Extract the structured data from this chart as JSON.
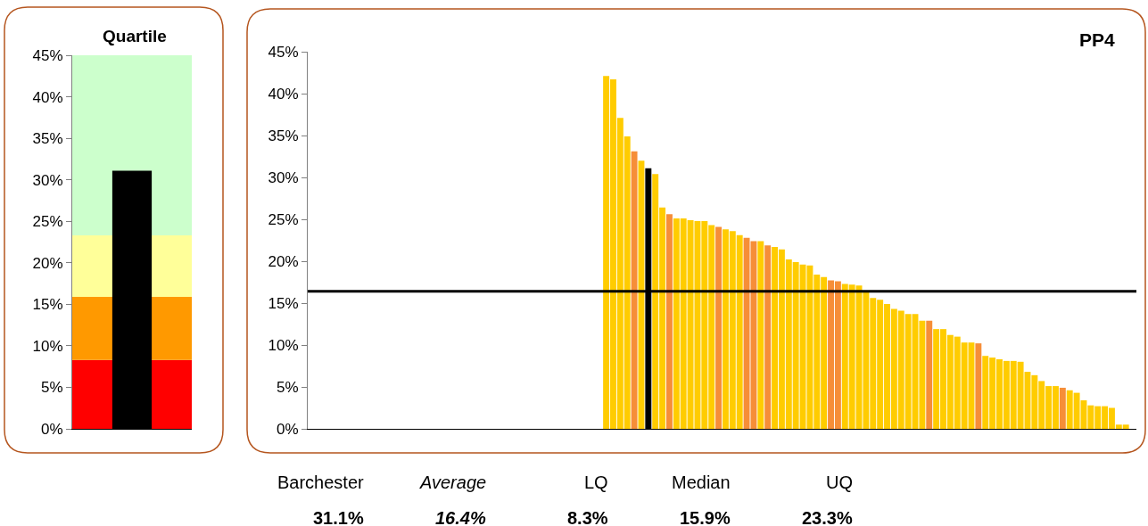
{
  "chart_data": [
    {
      "type": "bar",
      "title": "Quartile",
      "categories": [
        null
      ],
      "values": [
        31.1
      ],
      "color": "#000000",
      "tick_labels": "y",
      "ylim": [
        0,
        45
      ],
      "yticks": [
        {
          "value": 0,
          "label": "0%"
        },
        {
          "value": 5,
          "label": "5%"
        },
        {
          "value": 10,
          "label": "10%"
        },
        {
          "value": 15,
          "label": "15%"
        },
        {
          "value": 20,
          "label": "20%"
        },
        {
          "value": 25,
          "label": "25%"
        },
        {
          "value": 30,
          "label": "30%"
        },
        {
          "value": 35,
          "label": "35%"
        },
        {
          "value": 40,
          "label": "40%"
        },
        {
          "value": 45,
          "label": "45%"
        }
      ],
      "bands": [
        {
          "axis": "y",
          "from": 0,
          "to": 8.3,
          "color": "#ff0000"
        },
        {
          "axis": "y",
          "from": 8.3,
          "to": 15.9,
          "color": "#ff9900"
        },
        {
          "axis": "y",
          "from": 15.9,
          "to": 23.3,
          "color": "#ffff99"
        },
        {
          "axis": "y",
          "from": 23.3,
          "to": 45,
          "color": "#ccffcc"
        }
      ]
    },
    {
      "type": "bar",
      "title": "PP4",
      "tick_labels": "y",
      "categories": [
        null,
        null,
        null,
        null,
        null,
        null,
        null,
        null,
        null,
        null,
        null,
        null,
        null,
        null,
        null,
        null,
        null,
        null,
        null,
        null,
        null,
        null,
        null,
        null,
        null,
        null,
        null,
        null,
        null,
        null,
        null,
        null,
        null,
        null,
        null,
        null,
        null,
        null,
        null,
        null,
        null,
        null,
        null,
        null,
        null,
        null,
        null,
        null,
        null,
        null,
        null,
        null,
        null,
        null,
        null,
        null,
        null,
        null,
        null,
        null,
        null,
        null,
        null,
        null,
        null,
        null,
        null,
        null,
        null,
        null,
        null,
        null,
        null,
        null,
        null,
        null,
        null,
        null,
        null,
        null,
        null,
        null,
        null,
        null,
        null,
        null,
        null,
        null,
        null,
        null,
        null,
        null,
        null,
        null,
        null,
        null,
        null,
        null,
        null,
        null,
        null,
        null,
        null,
        null,
        null,
        null,
        null,
        null,
        null,
        null,
        null,
        null,
        null,
        null,
        null,
        null,
        null,
        null
      ],
      "values": [
        null,
        null,
        null,
        null,
        null,
        null,
        null,
        null,
        null,
        null,
        null,
        null,
        null,
        null,
        null,
        null,
        null,
        null,
        null,
        null,
        null,
        null,
        null,
        null,
        null,
        null,
        null,
        null,
        null,
        null,
        null,
        null,
        null,
        null,
        null,
        null,
        null,
        null,
        null,
        null,
        null,
        null,
        42.1,
        41.7,
        37.1,
        34.9,
        33.1,
        32.0,
        31.1,
        30.4,
        26.4,
        25.6,
        25.1,
        25.1,
        24.9,
        24.8,
        24.8,
        24.3,
        24.1,
        23.8,
        23.6,
        23.1,
        22.8,
        22.4,
        22.4,
        21.9,
        21.7,
        21.4,
        20.2,
        19.9,
        19.6,
        19.5,
        18.4,
        18.1,
        17.7,
        17.6,
        17.3,
        17.2,
        17.1,
        16.3,
        15.6,
        15.4,
        14.9,
        14.3,
        14.1,
        13.7,
        13.7,
        12.9,
        12.9,
        11.9,
        11.9,
        11.2,
        11.0,
        10.3,
        10.3,
        10.2,
        8.7,
        8.5,
        8.3,
        8.1,
        8.1,
        8.0,
        6.8,
        6.4,
        5.7,
        5.1,
        5.1,
        4.9,
        4.6,
        4.3,
        3.4,
        2.8,
        2.7,
        2.7,
        2.5,
        0.5,
        0.5,
        null
      ],
      "colors": [
        null,
        null,
        null,
        null,
        null,
        null,
        null,
        null,
        null,
        null,
        null,
        null,
        null,
        null,
        null,
        null,
        null,
        null,
        null,
        null,
        null,
        null,
        null,
        null,
        null,
        null,
        null,
        null,
        null,
        null,
        null,
        null,
        null,
        null,
        null,
        null,
        null,
        null,
        null,
        null,
        null,
        null,
        "#ffcc00",
        "#ffcc00",
        "#ffcc00",
        "#ffcc00",
        "#f68e38",
        "#ffcc00",
        "#000000",
        "#ffcc00",
        "#ffcc00",
        "#f68e38",
        "#ffcc00",
        "#ffcc00",
        "#ffcc00",
        "#ffcc00",
        "#ffcc00",
        "#ffcc00",
        "#f68e38",
        "#ffcc00",
        "#ffcc00",
        "#ffcc00",
        "#f68e38",
        "#f68e38",
        "#ffcc00",
        "#f68e38",
        "#ffcc00",
        "#ffcc00",
        "#ffcc00",
        "#ffcc00",
        "#ffcc00",
        "#ffcc00",
        "#ffcc00",
        "#ffcc00",
        "#f68e38",
        "#f68e38",
        "#ffcc00",
        "#ffcc00",
        "#ffcc00",
        "#ffcc00",
        "#ffcc00",
        "#ffcc00",
        "#ffcc00",
        "#ffcc00",
        "#ffcc00",
        "#ffcc00",
        "#ffcc00",
        "#ffcc00",
        "#f68e38",
        "#ffcc00",
        "#ffcc00",
        "#ffcc00",
        "#ffcc00",
        "#ffcc00",
        "#ffcc00",
        "#f68e38",
        "#ffcc00",
        "#ffcc00",
        "#ffcc00",
        "#ffcc00",
        "#ffcc00",
        "#ffcc00",
        "#ffcc00",
        "#ffcc00",
        "#ffcc00",
        "#ffcc00",
        "#ffcc00",
        "#f68e38",
        "#ffcc00",
        "#ffcc00",
        "#ffcc00",
        "#ffcc00",
        "#ffcc00",
        "#ffcc00",
        "#ffcc00",
        "#ffcc00",
        "#ffcc00",
        null
      ],
      "ylim": [
        0,
        45
      ],
      "yticks": [
        {
          "value": 0,
          "label": "0%"
        },
        {
          "value": 5,
          "label": "5%"
        },
        {
          "value": 10,
          "label": "10%"
        },
        {
          "value": 15,
          "label": "15%"
        },
        {
          "value": 20,
          "label": "20%"
        },
        {
          "value": 25,
          "label": "25%"
        },
        {
          "value": 30,
          "label": "30%"
        },
        {
          "value": 35,
          "label": "35%"
        },
        {
          "value": 40,
          "label": "40%"
        },
        {
          "value": 45,
          "label": "45%"
        }
      ],
      "ref_lines": [
        {
          "axis": "y",
          "value": 16.4,
          "color": "#000000"
        }
      ],
      "annotations": [
        "Barchester",
        "Average",
        "LQ",
        "Median",
        "UQ",
        "31.1%",
        "16.4%",
        "8.3%",
        "15.9%",
        "23.3%"
      ]
    }
  ]
}
